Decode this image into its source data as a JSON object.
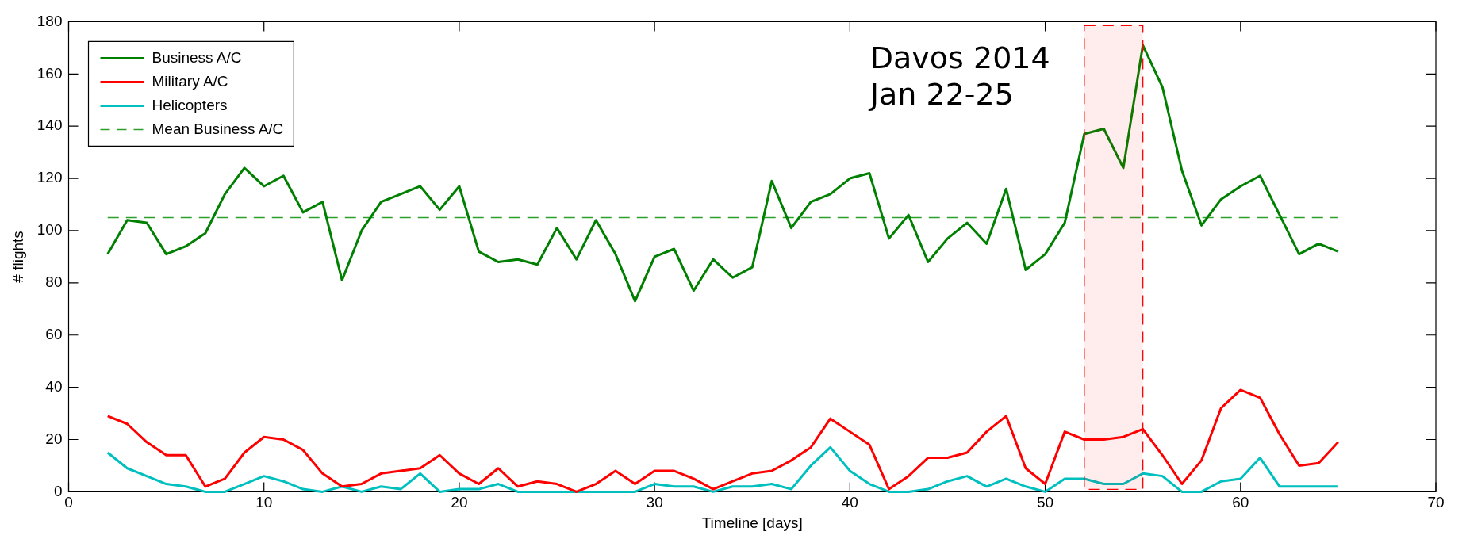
{
  "chart_data": {
    "type": "line",
    "xlabel": "Timeline [days]",
    "ylabel": "# flights",
    "x": [
      2,
      3,
      4,
      5,
      6,
      7,
      8,
      9,
      10,
      11,
      12,
      13,
      14,
      15,
      16,
      17,
      18,
      19,
      20,
      21,
      22,
      23,
      24,
      25,
      26,
      27,
      28,
      29,
      30,
      31,
      32,
      33,
      34,
      35,
      36,
      37,
      38,
      39,
      40,
      41,
      42,
      43,
      44,
      45,
      46,
      47,
      48,
      49,
      50,
      51,
      52,
      53,
      54,
      55,
      56,
      57,
      58,
      59,
      60,
      61,
      62,
      63,
      64,
      65
    ],
    "series": [
      {
        "name": "Business A/C",
        "color": "#008000",
        "values": [
          91,
          104,
          103,
          91,
          94,
          99,
          114,
          124,
          117,
          121,
          107,
          111,
          81,
          100,
          111,
          114,
          117,
          108,
          117,
          92,
          88,
          89,
          87,
          101,
          89,
          104,
          91,
          73,
          90,
          93,
          77,
          89,
          82,
          86,
          119,
          101,
          111,
          114,
          120,
          122,
          97,
          106,
          88,
          97,
          103,
          95,
          116,
          85,
          91,
          103,
          137,
          139,
          124,
          171,
          155,
          123,
          102,
          112,
          117,
          121,
          106,
          91,
          95,
          92
        ]
      },
      {
        "name": "Military A/C",
        "color": "#ff0000",
        "values": [
          29,
          26,
          19,
          14,
          14,
          2,
          5,
          15,
          21,
          20,
          16,
          7,
          2,
          3,
          7,
          8,
          9,
          14,
          7,
          3,
          9,
          2,
          4,
          3,
          0,
          3,
          8,
          3,
          8,
          8,
          5,
          1,
          4,
          7,
          8,
          12,
          17,
          28,
          23,
          18,
          1,
          6,
          13,
          13,
          15,
          23,
          29,
          9,
          3,
          23,
          20,
          20,
          21,
          24,
          14,
          3,
          12,
          32,
          39,
          36,
          22,
          10,
          11,
          19
        ]
      },
      {
        "name": "Helicopters",
        "color": "#00bfbf",
        "values": [
          15,
          9,
          6,
          3,
          2,
          0,
          0,
          3,
          6,
          4,
          1,
          0,
          2,
          0,
          2,
          1,
          7,
          0,
          1,
          1,
          3,
          0,
          0,
          0,
          0,
          0,
          0,
          0,
          3,
          2,
          2,
          0,
          2,
          2,
          3,
          1,
          10,
          17,
          8,
          3,
          0,
          0,
          1,
          4,
          6,
          2,
          5,
          2,
          0,
          5,
          5,
          3,
          3,
          7,
          6,
          0,
          0,
          4,
          5,
          13,
          2,
          2,
          2,
          2
        ]
      },
      {
        "name": "Mean Business A/C",
        "color": "#2ca02c",
        "type": "line",
        "line_style": "dashed",
        "x": [
          2,
          65
        ],
        "values": [
          105,
          105
        ]
      }
    ],
    "bands": [
      {
        "axis": "x",
        "from": 52,
        "to": 55,
        "color": "#ff0000"
      }
    ],
    "annotations": [
      "Davos 2014\nJan 22-25"
    ],
    "xlim": [
      0,
      70
    ],
    "xticks": [
      0,
      10,
      20,
      30,
      40,
      50,
      60,
      70
    ],
    "ylim": [
      0,
      180
    ],
    "yticks": [
      0,
      20,
      40,
      60,
      80,
      100,
      120,
      140,
      160,
      180
    ],
    "grid": false,
    "legend": "top left",
    "marker": "none",
    "line_style": "solid"
  }
}
